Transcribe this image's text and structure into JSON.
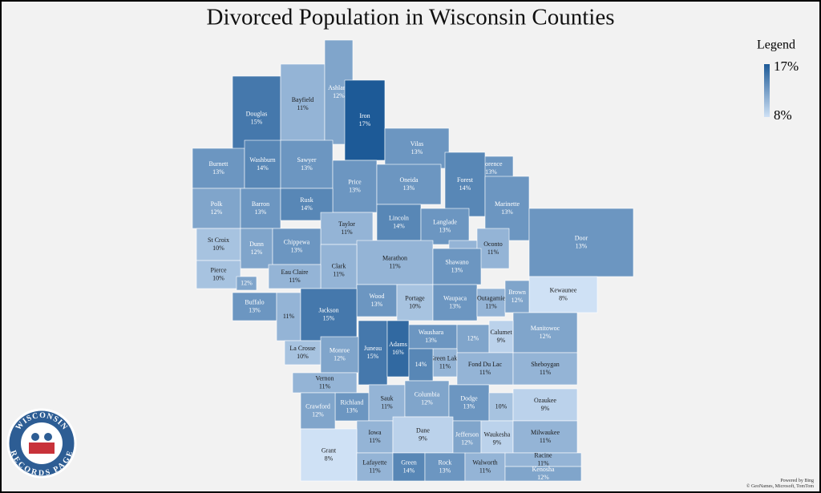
{
  "map": {
    "title": "Divorced Population in Wisconsin Counties",
    "legend": {
      "title": "Legend",
      "max": {
        "value": 17,
        "label": "17%"
      },
      "min": {
        "value": 8,
        "label": "8%"
      },
      "colors": [
        "#cfe1f5",
        "#1d5a97"
      ]
    },
    "counties": [
      {
        "name": "Douglas",
        "value": 15,
        "label": "15%"
      },
      {
        "name": "Bayfield",
        "value": 11,
        "label": "11%"
      },
      {
        "name": "Ashland",
        "value": 12,
        "label": "12%"
      },
      {
        "name": "Iron",
        "value": 17,
        "label": "17%"
      },
      {
        "name": "Vilas",
        "value": 13,
        "label": "13%"
      },
      {
        "name": "Florence",
        "value": 13,
        "label": "13%"
      },
      {
        "name": "Burnett",
        "value": 13,
        "label": "13%"
      },
      {
        "name": "Washburn",
        "value": 14,
        "label": "14%"
      },
      {
        "name": "Sawyer",
        "value": 13,
        "label": "13%"
      },
      {
        "name": "Price",
        "value": 13,
        "label": "13%"
      },
      {
        "name": "Oneida",
        "value": 13,
        "label": "13%"
      },
      {
        "name": "Forest",
        "value": 14,
        "label": "14%"
      },
      {
        "name": "Marinette",
        "value": 13,
        "label": "13%"
      },
      {
        "name": "Polk",
        "value": 12,
        "label": "12%"
      },
      {
        "name": "Barron",
        "value": 13,
        "label": "13%"
      },
      {
        "name": "Rusk",
        "value": 14,
        "label": "14%"
      },
      {
        "name": "Lincoln",
        "value": 14,
        "label": "14%"
      },
      {
        "name": "Langlade",
        "value": 13,
        "label": "13%"
      },
      {
        "name": "Taylor",
        "value": 11,
        "label": "11%"
      },
      {
        "name": "St Croix",
        "value": 10,
        "label": "10%"
      },
      {
        "name": "Dunn",
        "value": 12,
        "label": "12%"
      },
      {
        "name": "Chippewa",
        "value": 13,
        "label": "13%"
      },
      {
        "value": 11,
        "label": "11%"
      },
      {
        "name": "Oconto",
        "value": 11,
        "label": "11%"
      },
      {
        "name": "Door",
        "value": 13,
        "label": "13%"
      },
      {
        "name": "Marathon",
        "value": 11,
        "label": "11%"
      },
      {
        "name": "Clark",
        "value": 11,
        "label": "11%"
      },
      {
        "name": "Eau Claire",
        "value": 11,
        "label": "11%"
      },
      {
        "name": "Shawano",
        "value": 13,
        "label": "13%"
      },
      {
        "name": "Pierce",
        "value": 10,
        "label": "10%"
      },
      {
        "value": 12,
        "label": "12%"
      },
      {
        "name": "Kewaunee",
        "value": 8,
        "label": "8%"
      },
      {
        "name": "Wood",
        "value": 13,
        "label": "13%"
      },
      {
        "name": "Portage",
        "value": 10,
        "label": "10%"
      },
      {
        "name": "Waupaca",
        "value": 13,
        "label": "13%"
      },
      {
        "name": "Outagamie",
        "value": 11,
        "label": "11%"
      },
      {
        "name": "Brown",
        "value": 12,
        "label": "12%"
      },
      {
        "name": "Buffalo",
        "value": 13,
        "label": "13%"
      },
      {
        "value": 11,
        "label": "11%"
      },
      {
        "name": "Jackson",
        "value": 15,
        "label": "15%"
      },
      {
        "name": "Manitowoc",
        "value": 12,
        "label": "12%"
      },
      {
        "name": "Waushara",
        "value": 13,
        "label": "13%"
      },
      {
        "value": 12,
        "label": "12%"
      },
      {
        "name": "Calumet",
        "value": 9,
        "label": "9%"
      },
      {
        "name": "Juneau",
        "value": 15,
        "label": "15%"
      },
      {
        "name": "Adams",
        "value": 16,
        "label": "16%"
      },
      {
        "name": "La Crosse",
        "value": 10,
        "label": "10%"
      },
      {
        "name": "Monroe",
        "value": 12,
        "label": "12%"
      },
      {
        "name": "Green Lake",
        "value": 11,
        "label": "11%"
      },
      {
        "value": 14,
        "label": "14%"
      },
      {
        "name": "Fond Du Lac",
        "value": 11,
        "label": "11%"
      },
      {
        "name": "Sheboygan",
        "value": 11,
        "label": "11%"
      },
      {
        "name": "Vernon",
        "value": 11,
        "label": "11%"
      },
      {
        "name": "Richland",
        "value": 13,
        "label": "13%"
      },
      {
        "name": "Sauk",
        "value": 11,
        "label": "11%"
      },
      {
        "name": "Columbia",
        "value": 12,
        "label": "12%"
      },
      {
        "name": "Dodge",
        "value": 13,
        "label": "13%"
      },
      {
        "value": 10,
        "label": "10%"
      },
      {
        "name": "Ozaukee",
        "value": 9,
        "label": "9%"
      },
      {
        "name": "Crawford",
        "value": 12,
        "label": "12%"
      },
      {
        "name": "Iowa",
        "value": 11,
        "label": "11%"
      },
      {
        "name": "Dane",
        "value": 9,
        "label": "9%"
      },
      {
        "name": "Jefferson",
        "value": 12,
        "label": "12%"
      },
      {
        "name": "Waukesha",
        "value": 9,
        "label": "9%"
      },
      {
        "name": "Milwaukee",
        "value": 11,
        "label": "11%"
      },
      {
        "name": "Grant",
        "value": 8,
        "label": "8%"
      },
      {
        "name": "Lafayette",
        "value": 11,
        "label": "11%"
      },
      {
        "name": "Green",
        "value": 14,
        "label": "14%"
      },
      {
        "name": "Rock",
        "value": 13,
        "label": "13%"
      },
      {
        "name": "Walworth",
        "value": 11,
        "label": "11%"
      },
      {
        "name": "Racine",
        "value": 11,
        "label": "11%"
      },
      {
        "name": "Kenosha",
        "value": 12,
        "label": "12%"
      }
    ],
    "attribution": [
      "Powered by Bing",
      "© GeoNames, Microsoft, TomTom"
    ],
    "logo": [
      "WISCONSIN",
      "RECORDS PAGE"
    ]
  }
}
